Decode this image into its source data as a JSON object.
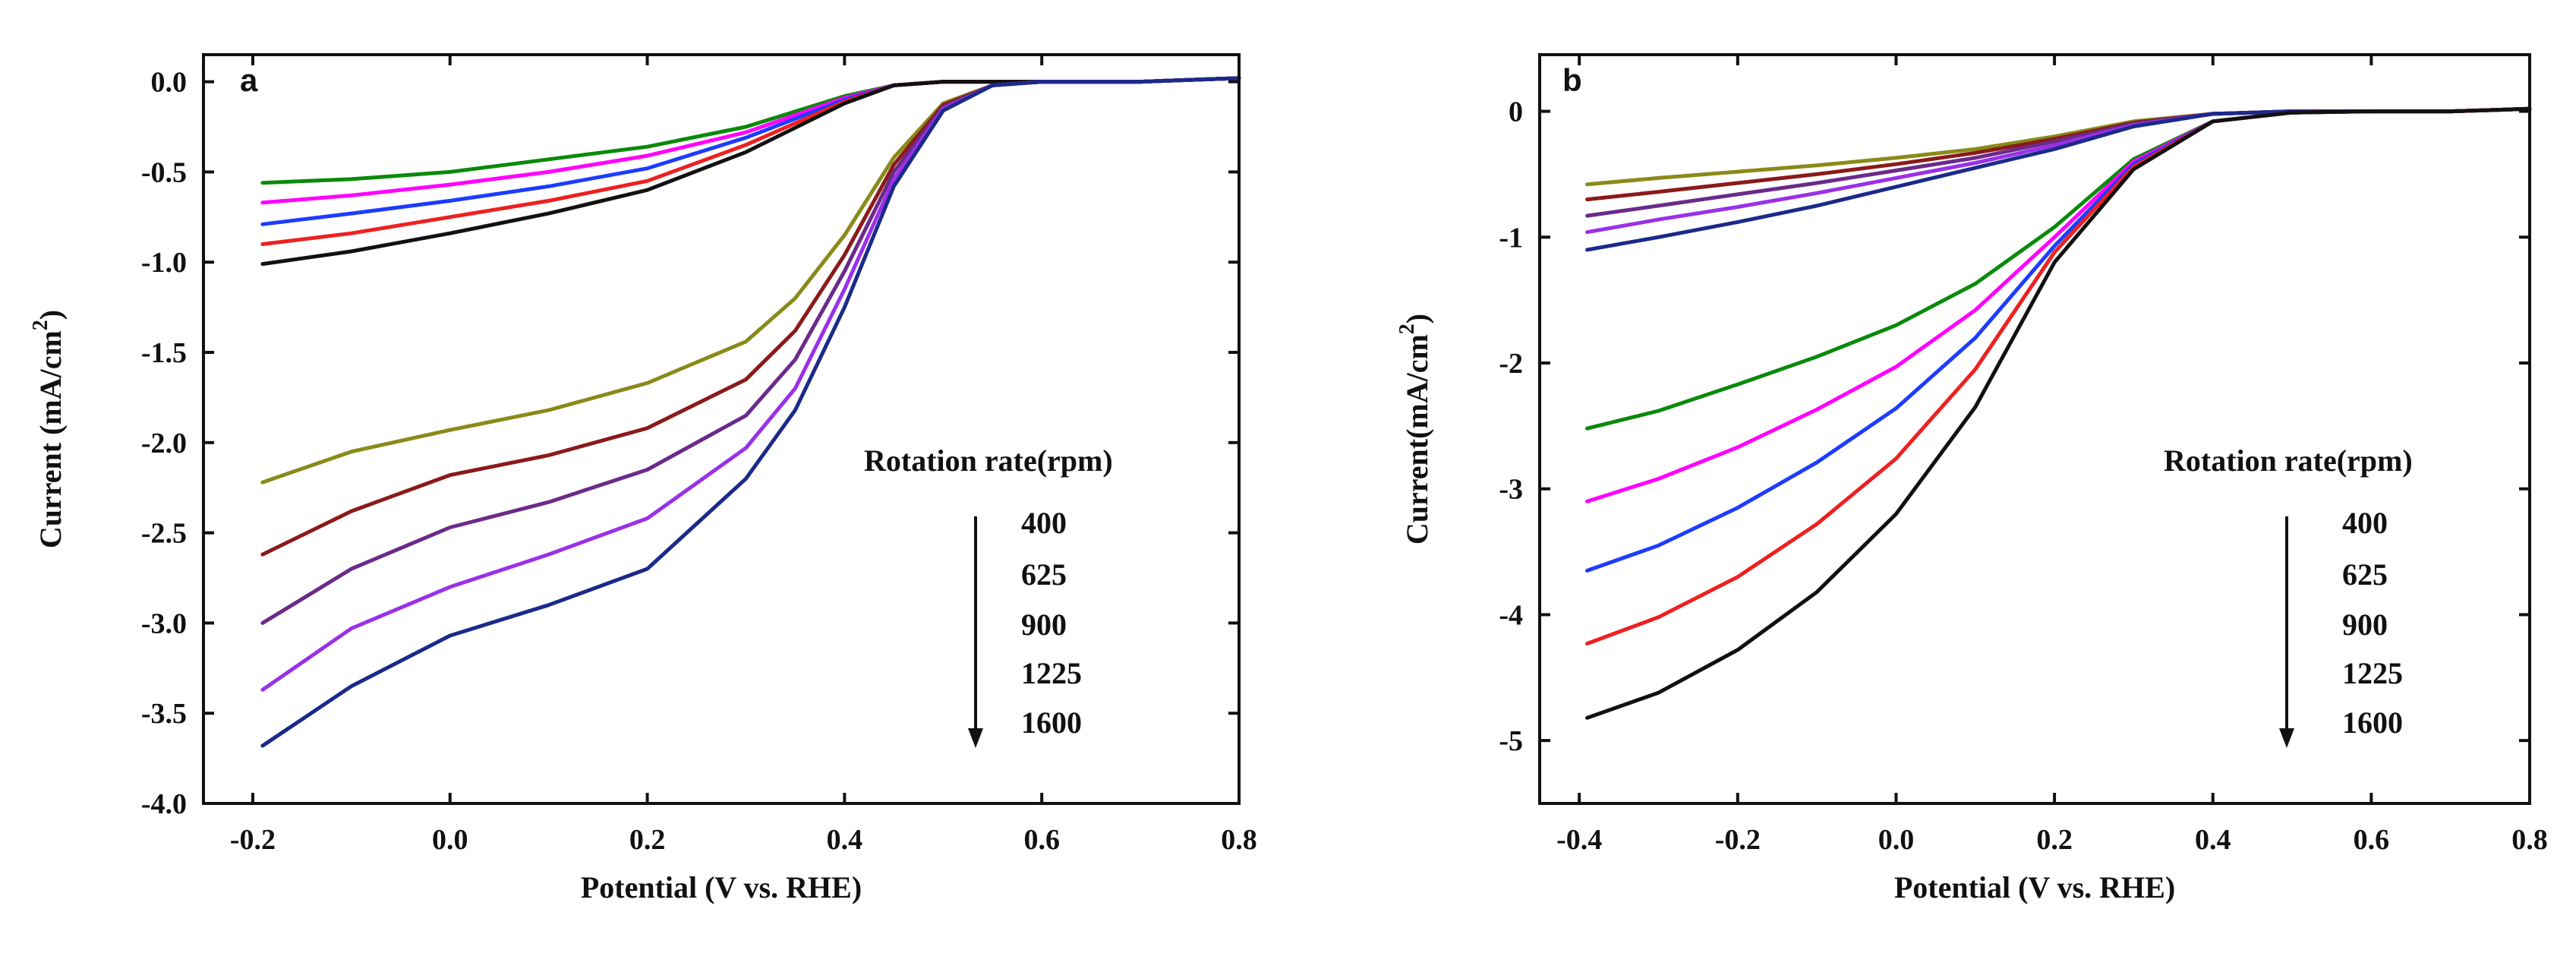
{
  "chart_data": [
    {
      "type": "line",
      "panel": "a",
      "xlabel": "Potential (V vs. RHE)",
      "ylabel": "Current (mA/cm",
      "ylabel_sup": "2",
      "ylabel_end": ")",
      "xlim": [
        -0.25,
        0.8
      ],
      "ylim": [
        -4.0,
        0.15
      ],
      "xticks": [
        -0.2,
        0.0,
        0.2,
        0.4,
        0.6,
        0.8
      ],
      "xtick_labels": [
        "-0.2",
        "0.0",
        "0.2",
        "0.4",
        "0.6",
        "0.8"
      ],
      "yticks": [
        0.0,
        -0.5,
        -1.0,
        -1.5,
        -2.0,
        -2.5,
        -3.0,
        -3.5,
        -4.0
      ],
      "ytick_labels": [
        "0.0",
        "-0.5",
        "-1.0",
        "-1.5",
        "-2.0",
        "-2.5",
        "-3.0",
        "-3.5",
        "-4.0"
      ],
      "legend_title": "Rotation rate(rpm)",
      "legend_items": [
        "400",
        "625",
        "900",
        "1225",
        "1600"
      ],
      "series": [
        {
          "name": "upper-400",
          "color": "#0a8a0a",
          "x": [
            -0.19,
            -0.1,
            0.0,
            0.1,
            0.2,
            0.3,
            0.4,
            0.45,
            0.5,
            0.6,
            0.7,
            0.8
          ],
          "values": [
            -0.56,
            -0.54,
            -0.5,
            -0.43,
            -0.36,
            -0.25,
            -0.08,
            -0.02,
            0.0,
            0.0,
            0.0,
            0.02
          ]
        },
        {
          "name": "upper-625",
          "color": "#ff00ff",
          "x": [
            -0.19,
            -0.1,
            0.0,
            0.1,
            0.2,
            0.3,
            0.4,
            0.45,
            0.5,
            0.6,
            0.7,
            0.8
          ],
          "values": [
            -0.67,
            -0.63,
            -0.57,
            -0.5,
            -0.41,
            -0.28,
            -0.09,
            -0.02,
            0.0,
            0.0,
            0.0,
            0.02
          ]
        },
        {
          "name": "upper-900",
          "color": "#1d3cff",
          "x": [
            -0.19,
            -0.1,
            0.0,
            0.1,
            0.2,
            0.3,
            0.4,
            0.45,
            0.5,
            0.6,
            0.7,
            0.8
          ],
          "values": [
            -0.79,
            -0.73,
            -0.66,
            -0.58,
            -0.48,
            -0.31,
            -0.1,
            -0.02,
            0.0,
            0.0,
            0.0,
            0.02
          ]
        },
        {
          "name": "upper-1225",
          "color": "#ee2020",
          "x": [
            -0.19,
            -0.1,
            0.0,
            0.1,
            0.2,
            0.3,
            0.4,
            0.45,
            0.5,
            0.6,
            0.7,
            0.8
          ],
          "values": [
            -0.9,
            -0.84,
            -0.75,
            -0.66,
            -0.55,
            -0.35,
            -0.11,
            -0.02,
            0.0,
            0.0,
            0.0,
            0.02
          ]
        },
        {
          "name": "upper-1600",
          "color": "#111111",
          "x": [
            -0.19,
            -0.1,
            0.0,
            0.1,
            0.2,
            0.3,
            0.4,
            0.45,
            0.5,
            0.6,
            0.7,
            0.8
          ],
          "values": [
            -1.01,
            -0.94,
            -0.84,
            -0.73,
            -0.6,
            -0.39,
            -0.12,
            -0.02,
            0.0,
            0.0,
            0.0,
            0.02
          ]
        },
        {
          "name": "lower-400",
          "color": "#8a8a1a",
          "x": [
            -0.19,
            -0.1,
            0.0,
            0.1,
            0.2,
            0.3,
            0.35,
            0.4,
            0.45,
            0.5,
            0.55,
            0.6,
            0.7,
            0.8
          ],
          "values": [
            -2.22,
            -2.05,
            -1.93,
            -1.82,
            -1.67,
            -1.44,
            -1.2,
            -0.85,
            -0.42,
            -0.12,
            -0.02,
            0.0,
            0.0,
            0.02
          ]
        },
        {
          "name": "lower-625",
          "color": "#8b1a1a",
          "x": [
            -0.19,
            -0.1,
            0.0,
            0.1,
            0.2,
            0.3,
            0.35,
            0.4,
            0.45,
            0.5,
            0.55,
            0.6,
            0.7,
            0.8
          ],
          "values": [
            -2.62,
            -2.38,
            -2.18,
            -2.07,
            -1.92,
            -1.65,
            -1.38,
            -0.96,
            -0.46,
            -0.13,
            -0.02,
            0.0,
            0.0,
            0.02
          ]
        },
        {
          "name": "lower-900",
          "color": "#6b2a8a",
          "x": [
            -0.19,
            -0.1,
            0.0,
            0.1,
            0.2,
            0.3,
            0.35,
            0.4,
            0.45,
            0.5,
            0.55,
            0.6,
            0.7,
            0.8
          ],
          "values": [
            -3.0,
            -2.7,
            -2.47,
            -2.33,
            -2.15,
            -1.85,
            -1.54,
            -1.05,
            -0.5,
            -0.14,
            -0.02,
            0.0,
            0.0,
            0.02
          ]
        },
        {
          "name": "lower-1225",
          "color": "#9a30e8",
          "x": [
            -0.19,
            -0.1,
            0.0,
            0.1,
            0.2,
            0.3,
            0.35,
            0.4,
            0.45,
            0.5,
            0.55,
            0.6,
            0.7,
            0.8
          ],
          "values": [
            -3.37,
            -3.03,
            -2.8,
            -2.62,
            -2.42,
            -2.03,
            -1.7,
            -1.15,
            -0.54,
            -0.15,
            -0.02,
            0.0,
            0.0,
            0.02
          ]
        },
        {
          "name": "lower-1600",
          "color": "#1a2a8a",
          "x": [
            -0.19,
            -0.1,
            0.0,
            0.1,
            0.2,
            0.3,
            0.35,
            0.4,
            0.45,
            0.5,
            0.55,
            0.6,
            0.7,
            0.8
          ],
          "values": [
            -3.68,
            -3.35,
            -3.07,
            -2.9,
            -2.7,
            -2.2,
            -1.82,
            -1.25,
            -0.58,
            -0.16,
            -0.02,
            0.0,
            0.0,
            0.02
          ]
        }
      ]
    },
    {
      "type": "line",
      "panel": "b",
      "xlabel": "Potential (V vs. RHE)",
      "ylabel": "Current(mA/cm",
      "ylabel_sup": "2",
      "ylabel_end": ")",
      "xlim": [
        -0.45,
        0.8
      ],
      "ylim": [
        -5.5,
        0.45
      ],
      "xticks": [
        -0.4,
        -0.2,
        0.0,
        0.2,
        0.4,
        0.6,
        0.8
      ],
      "xtick_labels": [
        "-0.4",
        "-0.2",
        "0.0",
        "0.2",
        "0.4",
        "0.6",
        "0.8"
      ],
      "yticks": [
        0,
        -1,
        -2,
        -3,
        -4,
        -5
      ],
      "ytick_labels": [
        "0",
        "-1",
        "-2",
        "-3",
        "-4",
        "-5"
      ],
      "legend_title": "Rotation rate(rpm)",
      "legend_items": [
        "400",
        "625",
        "900",
        "1225",
        "1600"
      ],
      "series": [
        {
          "name": "upper-400",
          "color": "#8a8a1a",
          "x": [
            -0.39,
            -0.3,
            -0.2,
            -0.1,
            0.0,
            0.1,
            0.2,
            0.3,
            0.4,
            0.5,
            0.6,
            0.7,
            0.8
          ],
          "values": [
            -0.58,
            -0.53,
            -0.48,
            -0.43,
            -0.37,
            -0.3,
            -0.2,
            -0.08,
            -0.02,
            0.0,
            0.0,
            0.0,
            0.02
          ]
        },
        {
          "name": "upper-625",
          "color": "#8b1a1a",
          "x": [
            -0.39,
            -0.3,
            -0.2,
            -0.1,
            0.0,
            0.1,
            0.2,
            0.3,
            0.4,
            0.5,
            0.6,
            0.7,
            0.8
          ],
          "values": [
            -0.7,
            -0.64,
            -0.57,
            -0.5,
            -0.42,
            -0.33,
            -0.22,
            -0.09,
            -0.02,
            0.0,
            0.0,
            0.0,
            0.02
          ]
        },
        {
          "name": "upper-900",
          "color": "#6b2a8a",
          "x": [
            -0.39,
            -0.3,
            -0.2,
            -0.1,
            0.0,
            0.1,
            0.2,
            0.3,
            0.4,
            0.5,
            0.6,
            0.7,
            0.8
          ],
          "values": [
            -0.83,
            -0.75,
            -0.66,
            -0.57,
            -0.47,
            -0.37,
            -0.24,
            -0.1,
            -0.02,
            0.0,
            0.0,
            0.0,
            0.02
          ]
        },
        {
          "name": "upper-1225",
          "color": "#9a30e8",
          "x": [
            -0.39,
            -0.3,
            -0.2,
            -0.1,
            0.0,
            0.1,
            0.2,
            0.3,
            0.4,
            0.5,
            0.6,
            0.7,
            0.8
          ],
          "values": [
            -0.96,
            -0.86,
            -0.76,
            -0.65,
            -0.53,
            -0.41,
            -0.27,
            -0.11,
            -0.02,
            0.0,
            0.0,
            0.0,
            0.02
          ]
        },
        {
          "name": "upper-1600",
          "color": "#1a2a8a",
          "x": [
            -0.39,
            -0.3,
            -0.2,
            -0.1,
            0.0,
            0.1,
            0.2,
            0.3,
            0.4,
            0.5,
            0.6,
            0.7,
            0.8
          ],
          "values": [
            -1.1,
            -1.0,
            -0.88,
            -0.75,
            -0.6,
            -0.45,
            -0.3,
            -0.12,
            -0.02,
            0.0,
            0.0,
            0.0,
            0.02
          ]
        },
        {
          "name": "lower-400",
          "color": "#0a8a0a",
          "x": [
            -0.39,
            -0.3,
            -0.2,
            -0.1,
            0.0,
            0.1,
            0.2,
            0.3,
            0.4,
            0.5,
            0.6,
            0.7,
            0.8
          ],
          "values": [
            -2.52,
            -2.38,
            -2.17,
            -1.95,
            -1.7,
            -1.37,
            -0.92,
            -0.38,
            -0.08,
            -0.01,
            0.0,
            0.0,
            0.02
          ]
        },
        {
          "name": "lower-625",
          "color": "#ff00ff",
          "x": [
            -0.39,
            -0.3,
            -0.2,
            -0.1,
            0.0,
            0.1,
            0.2,
            0.3,
            0.4,
            0.5,
            0.6,
            0.7,
            0.8
          ],
          "values": [
            -3.1,
            -2.92,
            -2.67,
            -2.37,
            -2.03,
            -1.58,
            -1.0,
            -0.4,
            -0.08,
            -0.01,
            0.0,
            0.0,
            0.02
          ]
        },
        {
          "name": "lower-900",
          "color": "#1d3cff",
          "x": [
            -0.39,
            -0.3,
            -0.2,
            -0.1,
            0.0,
            0.1,
            0.2,
            0.3,
            0.4,
            0.5,
            0.6,
            0.7,
            0.8
          ],
          "values": [
            -3.65,
            -3.45,
            -3.15,
            -2.79,
            -2.36,
            -1.8,
            -1.07,
            -0.42,
            -0.08,
            -0.01,
            0.0,
            0.0,
            0.02
          ]
        },
        {
          "name": "lower-1225",
          "color": "#ee2020",
          "x": [
            -0.39,
            -0.3,
            -0.2,
            -0.1,
            0.0,
            0.1,
            0.2,
            0.3,
            0.4,
            0.5,
            0.6,
            0.7,
            0.8
          ],
          "values": [
            -4.23,
            -4.02,
            -3.7,
            -3.28,
            -2.76,
            -2.05,
            -1.12,
            -0.44,
            -0.08,
            -0.01,
            0.0,
            0.0,
            0.02
          ]
        },
        {
          "name": "lower-1600",
          "color": "#111111",
          "x": [
            -0.39,
            -0.3,
            -0.2,
            -0.1,
            0.0,
            0.1,
            0.2,
            0.3,
            0.4,
            0.5,
            0.6,
            0.7,
            0.8
          ],
          "values": [
            -4.82,
            -4.62,
            -4.28,
            -3.82,
            -3.2,
            -2.35,
            -1.2,
            -0.46,
            -0.08,
            -0.01,
            0.0,
            0.0,
            0.02
          ]
        }
      ]
    }
  ]
}
